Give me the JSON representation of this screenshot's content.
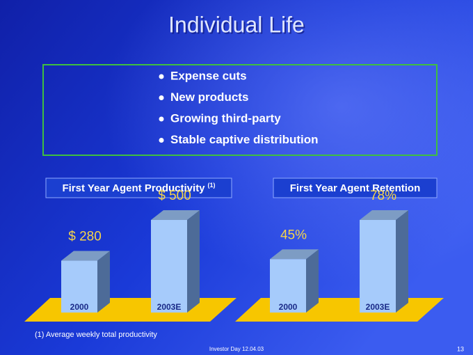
{
  "slide": {
    "title": "Individual Life",
    "bullets": [
      "Expense cuts",
      "New products",
      "Growing third-party",
      "Stable captive distribution"
    ],
    "footnote": "(1) Average weekly total productivity",
    "footer": "Investor Day 12.04.03",
    "page_number": "13"
  },
  "chart_data": [
    {
      "type": "bar3d",
      "title": "First Year Agent Productivity",
      "title_note": "(1)",
      "categories": [
        "2000",
        "2003E"
      ],
      "values": [
        280,
        500
      ],
      "value_labels": [
        "$ 280",
        "$ 500"
      ],
      "color": "#a6cbfb",
      "floor_color": "#f7c600"
    },
    {
      "type": "bar3d",
      "title": "First Year Agent Retention",
      "categories": [
        "2000",
        "2003E"
      ],
      "values": [
        45,
        78
      ],
      "value_labels": [
        "45%",
        "78%"
      ],
      "color": "#a6cbfb",
      "floor_color": "#f7c600"
    }
  ]
}
